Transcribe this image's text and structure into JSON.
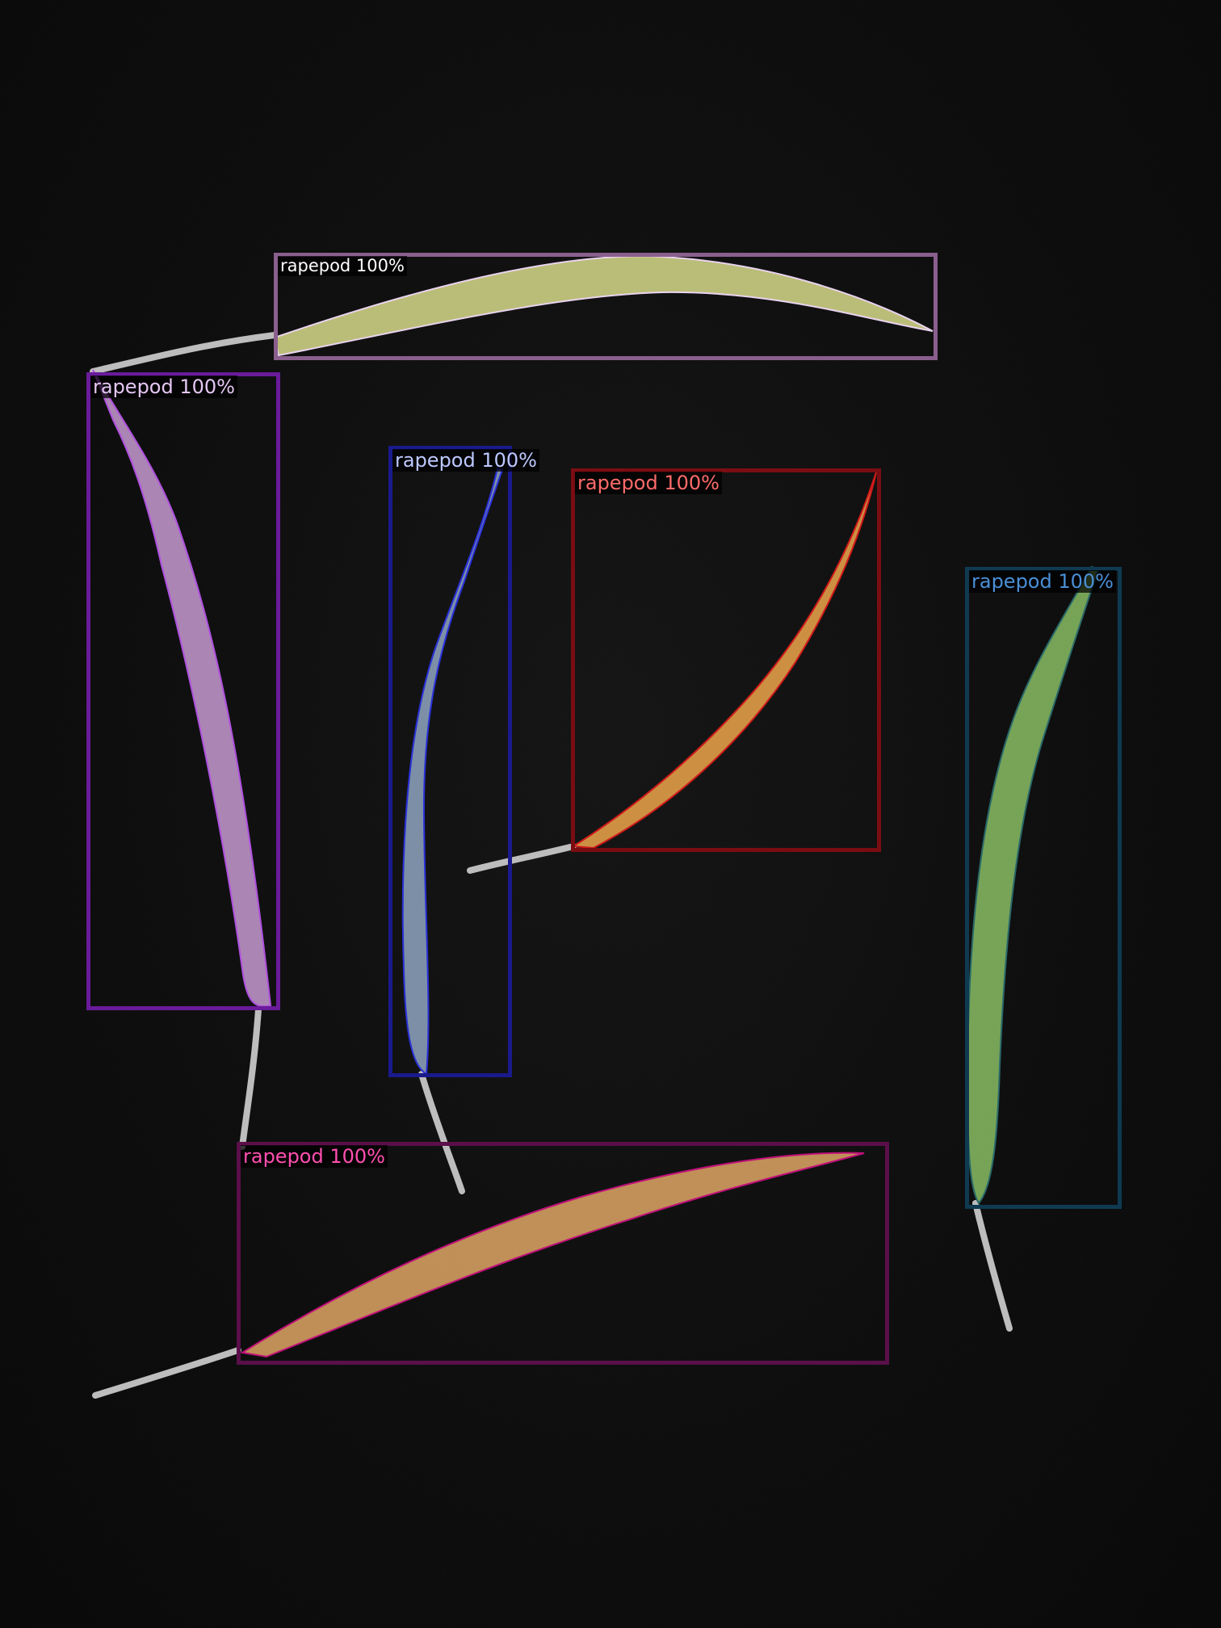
{
  "image": {
    "background_color": "#0b0b0b",
    "detections": [
      {
        "label": "rapepod 100%",
        "category": "rapepod",
        "score": "100%",
        "box_color": "#8a5f8d",
        "mask_color": "#d8dc8a",
        "label_color": "#ffffff"
      },
      {
        "label": "rapepod 100%",
        "category": "rapepod",
        "score": "100%",
        "box_color": "#6a1b9a",
        "mask_color": "#c79ad0",
        "label_color": "#e4c6f2"
      },
      {
        "label": "rapepod 100%",
        "category": "rapepod",
        "score": "100%",
        "box_color": "#1a1a8c",
        "mask_color": "#8fa6c2",
        "label_color": "#bcc8ff"
      },
      {
        "label": "rapepod 100%",
        "category": "rapepod",
        "score": "100%",
        "box_color": "#7a0d12",
        "mask_color": "#e7a24a",
        "label_color": "#ff6a6a"
      },
      {
        "label": "rapepod 100%",
        "category": "rapepod",
        "score": "100%",
        "box_color": "#0f3a52",
        "mask_color": "#86b862",
        "label_color": "#4a8fd6"
      },
      {
        "label": "rapepod 100%",
        "category": "rapepod",
        "score": "100%",
        "box_color": "#5a0f4a",
        "mask_color": "#d9a062",
        "label_color": "#ff4fb0"
      }
    ]
  }
}
